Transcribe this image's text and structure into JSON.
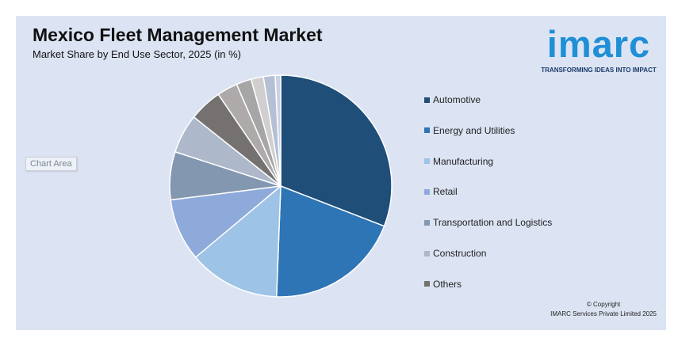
{
  "header": {
    "title": "Mexico Fleet Management Market",
    "subtitle": "Market Share by End Use Sector, 2025 (in %)"
  },
  "logo": {
    "text": "imarc",
    "tagline": "TRANSFORMING IDEAS INTO IMPACT",
    "color": "#1f8fd6"
  },
  "chart_area_label": "Chart Area",
  "copyright": {
    "line1": "© Copyright",
    "line2": "IMARC Services Private Limited 2025"
  },
  "chart_data": {
    "type": "pie",
    "title": "Mexico Fleet Management Market",
    "subtitle": "Market Share by End Use Sector, 2025 (in %)",
    "legend_position": "right",
    "start_angle_deg": 0,
    "direction": "clockwise",
    "slices": [
      {
        "label": "Automotive",
        "value": 30.9,
        "color": "#1f4e79",
        "in_legend": true
      },
      {
        "label": "Energy and Utilities",
        "value": 19.7,
        "color": "#2e75b6",
        "in_legend": true
      },
      {
        "label": "Manufacturing",
        "value": 13.3,
        "color": "#9dc3e6",
        "in_legend": true
      },
      {
        "label": "Retail",
        "value": 9.1,
        "color": "#8eaadb",
        "in_legend": true
      },
      {
        "label": "Transportation and Logistics",
        "value": 7.0,
        "color": "#8497b0",
        "in_legend": true
      },
      {
        "label": "Construction",
        "value": 5.7,
        "color": "#adb9ca",
        "in_legend": true
      },
      {
        "label": "Others",
        "value": 4.8,
        "color": "#767171",
        "in_legend": true
      },
      {
        "label": "",
        "value": 3.0,
        "color": "#aeaaaa",
        "in_legend": false
      },
      {
        "label": "",
        "value": 2.2,
        "color": "#a6a6a6",
        "in_legend": false
      },
      {
        "label": "",
        "value": 1.8,
        "color": "#d0cece",
        "in_legend": false
      },
      {
        "label": "",
        "value": 1.7,
        "color": "#b4c0d4",
        "in_legend": false
      },
      {
        "label": "",
        "value": 0.8,
        "color": "#c9d3e5",
        "in_legend": false
      }
    ]
  }
}
